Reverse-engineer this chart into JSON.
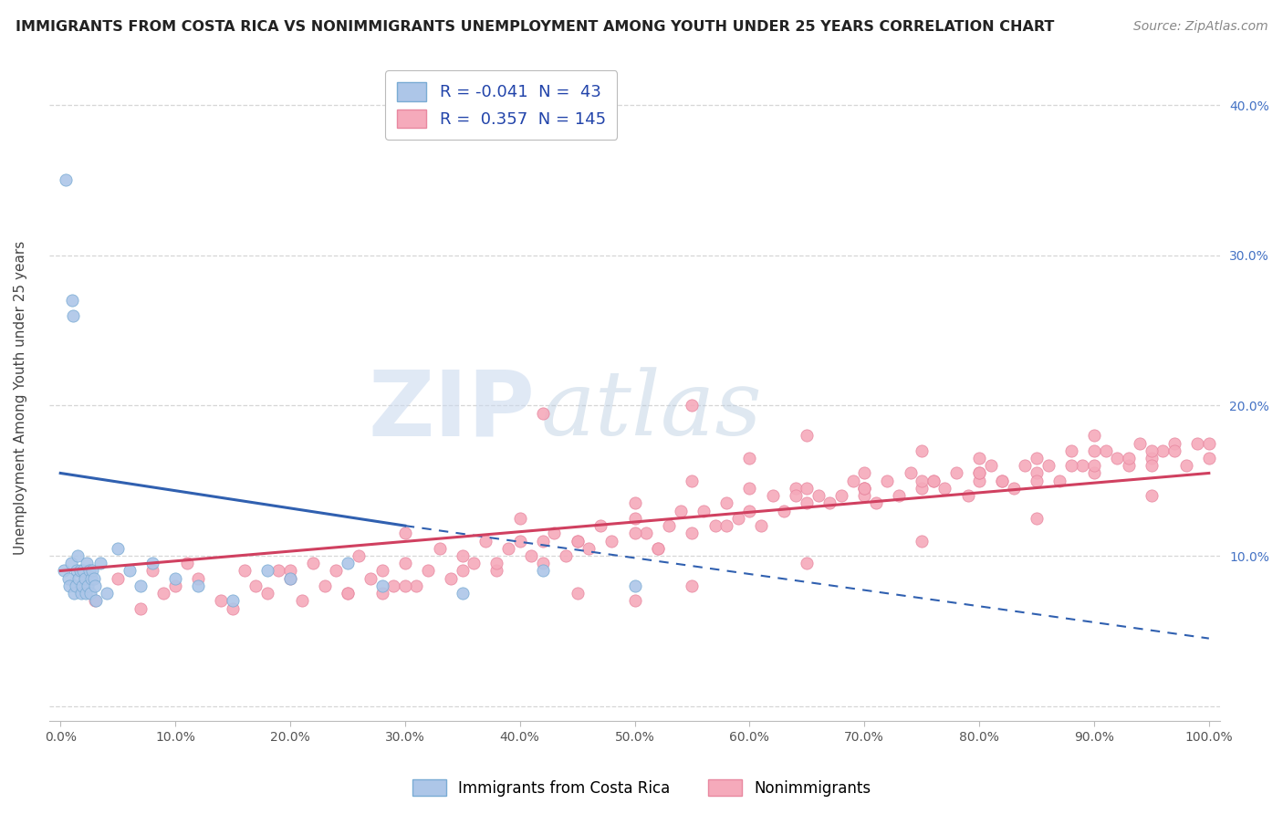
{
  "title": "IMMIGRANTS FROM COSTA RICA VS NONIMMIGRANTS UNEMPLOYMENT AMONG YOUTH UNDER 25 YEARS CORRELATION CHART",
  "source": "Source: ZipAtlas.com",
  "ylabel": "Unemployment Among Youth under 25 years",
  "watermark_zip": "ZIP",
  "watermark_atlas": "atlas",
  "legend_labels": [
    "Immigrants from Costa Rica",
    "Nonimmigrants"
  ],
  "R_blue": -0.041,
  "N_blue": 43,
  "R_pink": 0.357,
  "N_pink": 145,
  "blue_color": "#adc6e8",
  "blue_edge": "#7aacd4",
  "pink_color": "#f5aabb",
  "pink_edge": "#e888a0",
  "blue_line_color": "#3060b0",
  "pink_line_color": "#d04060",
  "blue_scatter_x": [
    0.3,
    0.5,
    0.7,
    0.8,
    0.9,
    1.0,
    1.1,
    1.2,
    1.3,
    1.4,
    1.5,
    1.6,
    1.7,
    1.8,
    1.9,
    2.0,
    2.1,
    2.2,
    2.3,
    2.4,
    2.5,
    2.6,
    2.7,
    2.8,
    2.9,
    3.0,
    3.1,
    3.5,
    4.0,
    5.0,
    6.0,
    7.0,
    8.0,
    10.0,
    12.0,
    15.0,
    18.0,
    20.0,
    25.0,
    28.0,
    35.0,
    42.0,
    50.0
  ],
  "blue_scatter_y": [
    9.0,
    35.0,
    8.5,
    8.0,
    9.5,
    27.0,
    26.0,
    7.5,
    8.0,
    9.0,
    10.0,
    8.5,
    9.0,
    7.5,
    8.0,
    9.0,
    8.5,
    7.5,
    9.5,
    8.0,
    9.0,
    7.5,
    8.5,
    9.0,
    8.5,
    8.0,
    7.0,
    9.5,
    7.5,
    10.5,
    9.0,
    8.0,
    9.5,
    8.5,
    8.0,
    7.0,
    9.0,
    8.5,
    9.5,
    8.0,
    7.5,
    9.0,
    8.0
  ],
  "pink_scatter_x": [
    3.0,
    5.0,
    7.0,
    8.0,
    9.0,
    10.0,
    11.0,
    12.0,
    14.0,
    15.0,
    16.0,
    17.0,
    18.0,
    19.0,
    20.0,
    21.0,
    22.0,
    23.0,
    24.0,
    25.0,
    26.0,
    27.0,
    28.0,
    29.0,
    30.0,
    31.0,
    32.0,
    33.0,
    34.0,
    35.0,
    36.0,
    37.0,
    38.0,
    39.0,
    40.0,
    41.0,
    42.0,
    43.0,
    44.0,
    45.0,
    46.0,
    47.0,
    48.0,
    50.0,
    51.0,
    52.0,
    53.0,
    54.0,
    55.0,
    56.0,
    57.0,
    58.0,
    59.0,
    60.0,
    61.0,
    62.0,
    63.0,
    64.0,
    65.0,
    66.0,
    67.0,
    68.0,
    69.0,
    70.0,
    71.0,
    72.0,
    73.0,
    74.0,
    75.0,
    76.0,
    77.0,
    78.0,
    79.0,
    80.0,
    81.0,
    82.0,
    83.0,
    84.0,
    85.0,
    86.0,
    87.0,
    88.0,
    89.0,
    90.0,
    91.0,
    92.0,
    93.0,
    94.0,
    95.0,
    96.0,
    97.0,
    98.0,
    99.0,
    100.0,
    28.0,
    35.0,
    42.0,
    50.0,
    55.0,
    60.0,
    65.0,
    70.0,
    75.0,
    80.0,
    85.0,
    90.0,
    42.0,
    50.0,
    60.0,
    70.0,
    80.0,
    90.0,
    95.0,
    30.0,
    40.0,
    50.0,
    55.0,
    65.0,
    70.0,
    75.0,
    80.0,
    85.0,
    90.0,
    95.0,
    45.0,
    55.0,
    65.0,
    75.0,
    85.0,
    95.0,
    20.0,
    25.0,
    30.0,
    38.0,
    45.0,
    52.0,
    58.0,
    64.0,
    70.0,
    76.0,
    82.0,
    88.0,
    93.0,
    97.0,
    100.0
  ],
  "pink_scatter_y": [
    7.0,
    8.5,
    6.5,
    9.0,
    7.5,
    8.0,
    9.5,
    8.5,
    7.0,
    6.5,
    9.0,
    8.0,
    7.5,
    9.0,
    8.5,
    7.0,
    9.5,
    8.0,
    9.0,
    7.5,
    10.0,
    8.5,
    9.0,
    8.0,
    9.5,
    8.0,
    9.0,
    10.5,
    8.5,
    10.0,
    9.5,
    11.0,
    9.0,
    10.5,
    11.0,
    10.0,
    9.5,
    11.5,
    10.0,
    11.0,
    10.5,
    12.0,
    11.0,
    12.5,
    11.5,
    10.5,
    12.0,
    13.0,
    11.5,
    13.0,
    12.0,
    13.5,
    12.5,
    13.0,
    12.0,
    14.0,
    13.0,
    14.5,
    13.5,
    14.0,
    13.5,
    14.0,
    15.0,
    14.5,
    13.5,
    15.0,
    14.0,
    15.5,
    14.5,
    15.0,
    14.5,
    15.5,
    14.0,
    15.0,
    16.0,
    15.0,
    14.5,
    16.0,
    15.5,
    16.0,
    15.0,
    17.0,
    16.0,
    15.5,
    17.0,
    16.5,
    16.0,
    17.5,
    16.5,
    17.0,
    17.5,
    16.0,
    17.5,
    16.5,
    7.5,
    9.0,
    19.5,
    7.0,
    20.0,
    16.5,
    18.0,
    14.0,
    17.0,
    15.5,
    16.5,
    18.0,
    11.0,
    13.5,
    14.5,
    15.5,
    16.5,
    17.0,
    16.0,
    11.5,
    12.5,
    11.5,
    15.0,
    14.5,
    14.5,
    15.0,
    15.5,
    15.0,
    16.0,
    17.0,
    7.5,
    8.0,
    9.5,
    11.0,
    12.5,
    14.0,
    9.0,
    7.5,
    8.0,
    9.5,
    11.0,
    10.5,
    12.0,
    14.0,
    14.5,
    15.0,
    15.0,
    16.0,
    16.5,
    17.0,
    17.5
  ],
  "blue_line": {
    "x0": 0,
    "x1": 30,
    "y0": 15.5,
    "y1": 12.0,
    "x2": 100,
    "y2": 4.5
  },
  "pink_line": {
    "x0": 0,
    "x1": 100,
    "y0": 9.0,
    "y1": 15.5
  },
  "xlim": [
    -1,
    101
  ],
  "ylim": [
    -1,
    42
  ],
  "xticks": [
    0,
    10,
    20,
    30,
    40,
    50,
    60,
    70,
    80,
    90,
    100
  ],
  "yticks": [
    0,
    10,
    20,
    30,
    40
  ],
  "xticklabels": [
    "0.0%",
    "10.0%",
    "20.0%",
    "30.0%",
    "40.0%",
    "50.0%",
    "60.0%",
    "70.0%",
    "80.0%",
    "90.0%",
    "100.0%"
  ],
  "right_yticklabels": [
    "10.0%",
    "20.0%",
    "30.0%",
    "40.0%"
  ],
  "right_ytick_positions": [
    10,
    20,
    30,
    40
  ],
  "grid_color": "#cccccc",
  "background": "#ffffff"
}
